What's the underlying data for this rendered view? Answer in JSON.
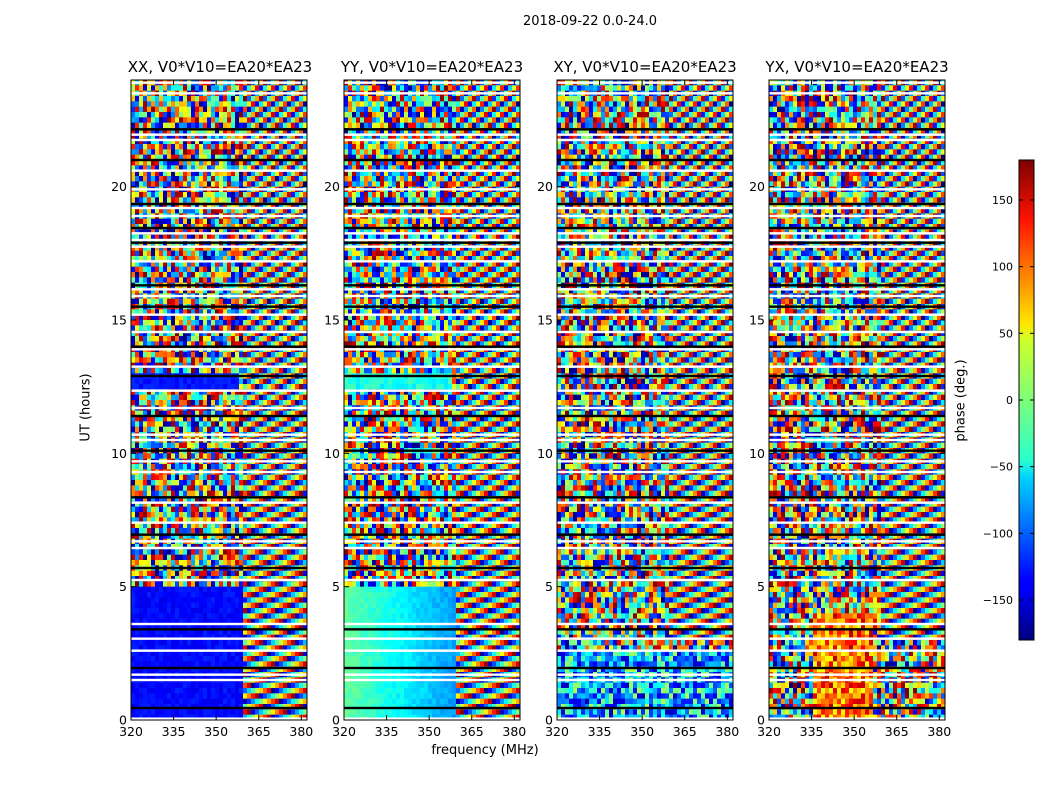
{
  "chart_data": {
    "type": "heatmap",
    "title": "2018-09-22 0.0-24.0",
    "xlabel": "frequency (MHz)",
    "ylabel": "UT (hours)",
    "xlim": [
      320,
      382
    ],
    "ylim": [
      0,
      24
    ],
    "x_ticks": [
      "320",
      "335",
      "350",
      "365",
      "380"
    ],
    "x_tick_values": [
      320,
      335,
      350,
      365,
      380
    ],
    "y_ticks": [
      "0",
      "5",
      "10",
      "15",
      "20"
    ],
    "y_tick_values": [
      0,
      5,
      10,
      15,
      20
    ],
    "panels": [
      {
        "title": "XX, V0*V10=EA20*EA23"
      },
      {
        "title": "YY, V0*V10=EA20*EA23"
      },
      {
        "title": "XY, V0*V10=EA20*EA23"
      },
      {
        "title": "YX, V0*V10=EA20*EA23"
      }
    ],
    "colorbar": {
      "label": "phase (deg.)",
      "range": [
        -180,
        180
      ],
      "colormap": "jet",
      "ticks": [
        "−150",
        "−100",
        "−50",
        "0",
        "50",
        "100",
        "150"
      ],
      "tick_values": [
        -150,
        -100,
        -50,
        0,
        50,
        100,
        150
      ]
    },
    "flagged_time_bands_hours": [
      0.05,
      0.45,
      1.5,
      1.7,
      1.95,
      2.6,
      3.05,
      3.4,
      3.6,
      5.25,
      5.7,
      6.45,
      6.7,
      6.95,
      7.4,
      8.15,
      8.35,
      9.3,
      9.7,
      10.1,
      10.5,
      10.7,
      11.4,
      11.7,
      12.35,
      12.9,
      13.25,
      13.9,
      14.0,
      14.55,
      15.2,
      15.5,
      15.9,
      16.15,
      16.3,
      17.2,
      17.75,
      17.9,
      18.0,
      18.25,
      18.45,
      18.9,
      19.2,
      19.35,
      19.9,
      20.6,
      21.0,
      21.75,
      21.95,
      22.15,
      23.5,
      23.9
    ]
  }
}
